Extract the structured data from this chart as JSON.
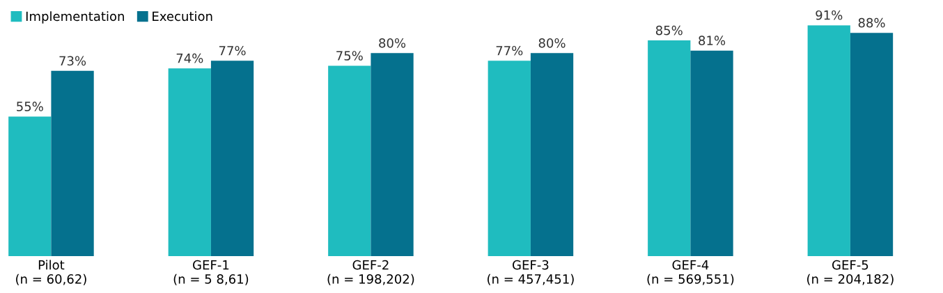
{
  "chart_data": {
    "type": "bar",
    "categories": [
      "Pilot\n(n = 60,62)",
      "GEF-1\n(n = 5 8,61)",
      "GEF-2\n(n = 198,202)",
      "GEF-3\n(n = 457,451)",
      "GEF-4\n(n = 569,551)",
      "GEF-5\n(n = 204,182)"
    ],
    "series": [
      {
        "name": "Implementation",
        "color": "#1fbcbf",
        "values": [
          55,
          74,
          75,
          77,
          85,
          91
        ],
        "value_labels": [
          "55%",
          "74%",
          "75%",
          "77%",
          "85%",
          "91%"
        ]
      },
      {
        "name": "Execution",
        "color": "#05718e",
        "values": [
          73,
          77,
          80,
          80,
          81,
          88
        ],
        "value_labels": [
          "73%",
          "77%",
          "80%",
          "80%",
          "81%",
          "88%"
        ]
      }
    ],
    "legend": "top left",
    "grid": false
  }
}
